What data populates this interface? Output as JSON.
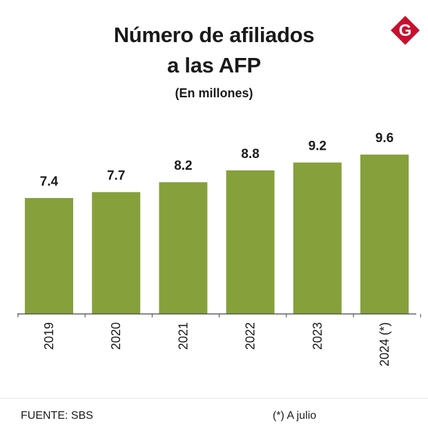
{
  "title_line1": "Número de afiliados",
  "title_line2": "a las AFP",
  "subtitle": "(En millones)",
  "logo_letter": "G",
  "colors": {
    "bar": "#86a03c",
    "logo": "#c8102e",
    "axis": "#444444"
  },
  "source": "FUENTE: SBS",
  "note": "(*) A julio",
  "chart_data": {
    "type": "bar",
    "title": "Número de afiliados a las AFP",
    "subtitle": "(En millones)",
    "categories": [
      "2019",
      "2020",
      "2021",
      "2022",
      "2023",
      "2024 (*)"
    ],
    "values": [
      7.4,
      7.7,
      8.2,
      8.8,
      9.2,
      9.6
    ],
    "data_labels": [
      "7.4",
      "7.7",
      "8.2",
      "8.8",
      "9.2",
      "9.6"
    ],
    "xlabel": "",
    "ylabel": "",
    "grid": false
  }
}
